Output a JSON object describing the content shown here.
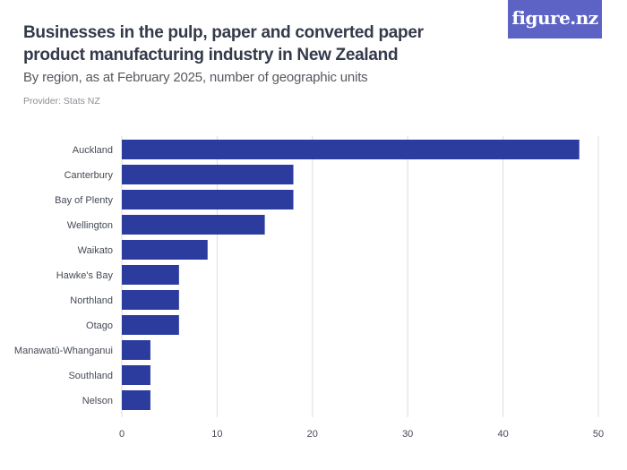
{
  "header": {
    "title": "Businesses in the pulp, paper and converted paper product manufacturing industry in New Zealand",
    "subtitle": "By region, as at February 2025, number of geographic units",
    "provider": "Provider: Stats NZ",
    "logo": "figure.nz"
  },
  "colors": {
    "bar": "#2b3b9e",
    "grid": "#dddddd",
    "logo_bg": "#5c63c4"
  },
  "chart_data": {
    "type": "bar",
    "orientation": "horizontal",
    "title": "Businesses in the pulp, paper and converted paper product manufacturing industry in New Zealand",
    "subtitle": "By region, as at February 2025, number of geographic units",
    "categories": [
      "Auckland",
      "Canterbury",
      "Bay of Plenty",
      "Wellington",
      "Waikato",
      "Hawke's Bay",
      "Northland",
      "Otago",
      "Manawatū-Whanganui",
      "Southland",
      "Nelson"
    ],
    "values": [
      48,
      18,
      18,
      15,
      9,
      6,
      6,
      6,
      3,
      3,
      3
    ],
    "xlim": [
      0,
      50
    ],
    "xticks": [
      0,
      10,
      20,
      30,
      40,
      50
    ],
    "grid": true,
    "legend": "none"
  }
}
